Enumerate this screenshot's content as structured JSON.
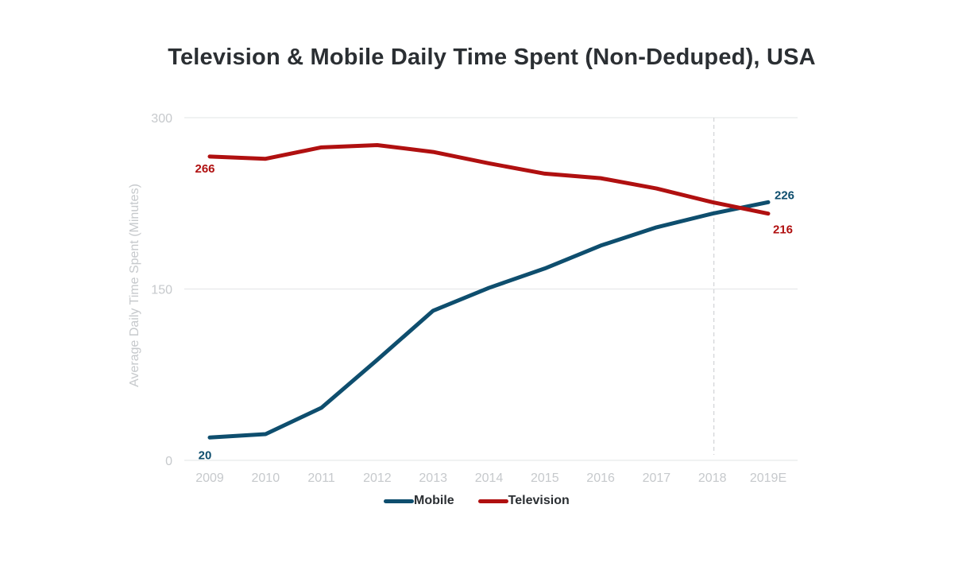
{
  "chart_data": {
    "type": "line",
    "title": "Television & Mobile Daily Time Spent (Non-Deduped), USA",
    "xlabel": "",
    "ylabel": "Average Daily Time Spent (Minutes)",
    "categories": [
      "2009",
      "2010",
      "2011",
      "2012",
      "2013",
      "2014",
      "2015",
      "2016",
      "2017",
      "2018",
      "2019E"
    ],
    "ylim": [
      0,
      300
    ],
    "yticks": [
      "0",
      "150",
      "300"
    ],
    "grid": true,
    "legend_position": "bottom",
    "reference_line_category": "2018",
    "series": [
      {
        "name": "Mobile",
        "color": "#0e4e6e",
        "values": [
          20,
          23,
          46,
          88,
          131,
          151,
          168,
          188,
          204,
          216,
          226
        ],
        "labels": [
          {
            "index": 0,
            "text": "20"
          },
          {
            "index": 10,
            "text": "226"
          }
        ]
      },
      {
        "name": "Television",
        "color": "#b01010",
        "values": [
          266,
          264,
          274,
          276,
          270,
          260,
          251,
          247,
          238,
          226,
          216
        ],
        "labels": [
          {
            "index": 0,
            "text": "266"
          },
          {
            "index": 10,
            "text": "216"
          }
        ]
      }
    ]
  }
}
